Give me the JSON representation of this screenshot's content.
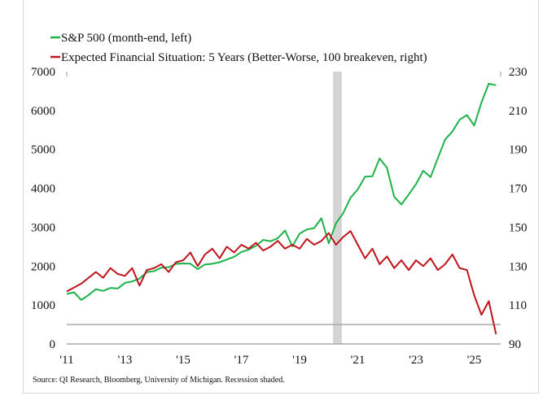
{
  "chart_data": {
    "type": "line",
    "title": "",
    "legend": [
      {
        "label": "S&P 500 (month-end, left)",
        "color": "#1db34a"
      },
      {
        "label": "Expected Financial Situation: 5 Years (Better-Worse, 100 breakeven, right)",
        "color": "#c0141c"
      }
    ],
    "legend_placement": "top-left",
    "xlim": [
      2011,
      2026
    ],
    "x_ticks": [
      {
        "v": 2011,
        "label": "'11"
      },
      {
        "v": 2013,
        "label": "'13"
      },
      {
        "v": 2015,
        "label": "'15"
      },
      {
        "v": 2017,
        "label": "'17"
      },
      {
        "v": 2019,
        "label": "'19"
      },
      {
        "v": 2021,
        "label": "'21"
      },
      {
        "v": 2023,
        "label": "'23"
      },
      {
        "v": 2025,
        "label": "'25"
      }
    ],
    "ylim_left": [
      0,
      7000
    ],
    "y_ticks_left": [
      "0",
      "1000",
      "2000",
      "3000",
      "4000",
      "5000",
      "6000",
      "7000"
    ],
    "ylim_right": [
      90,
      230
    ],
    "y_ticks_right": [
      "90",
      "110",
      "130",
      "150",
      "170",
      "190",
      "210",
      "230"
    ],
    "reference_line_right": 100,
    "recession": [
      2020.15,
      2020.45
    ],
    "x_start": 2011,
    "x_step": 0.25,
    "series": [
      {
        "name": "S&P 500",
        "axis": "left",
        "color": "#1db34a",
        "values": [
          1286,
          1326,
          1131,
          1257,
          1408,
          1362,
          1440,
          1426,
          1569,
          1606,
          1681,
          1848,
          1872,
          1960,
          1972,
          2059,
          2068,
          2063,
          1920,
          2044,
          2060,
          2099,
          2168,
          2239,
          2363,
          2423,
          2519,
          2674,
          2640,
          2718,
          2914,
          2507,
          2834,
          2942,
          2977,
          3231,
          2585,
          3100,
          3363,
          3756,
          3973,
          4298,
          4308,
          4766,
          4530,
          3785,
          3586,
          3840,
          4109,
          4450,
          4288,
          4770,
          5254,
          5460,
          5762,
          5882,
          5612,
          6205,
          6688,
          6650
        ]
      },
      {
        "name": "Expected Financial Situation",
        "axis": "right",
        "color": "#c0141c",
        "values": [
          117,
          119,
          121,
          124,
          127,
          124,
          129,
          126,
          125,
          129,
          120,
          128,
          129,
          131,
          127,
          132,
          133,
          137,
          130,
          136,
          139,
          134,
          140,
          137,
          141,
          139,
          142,
          138,
          140,
          143,
          139,
          141,
          139,
          144,
          141,
          143,
          147,
          141,
          145,
          148,
          141,
          134,
          139,
          131,
          135,
          129,
          133,
          128,
          133,
          130,
          134,
          128,
          131,
          136,
          129,
          128,
          115,
          105,
          112,
          95
        ]
      }
    ],
    "source": "Source: QI Research, Bloomberg, University of Michigan. Recession shaded."
  }
}
